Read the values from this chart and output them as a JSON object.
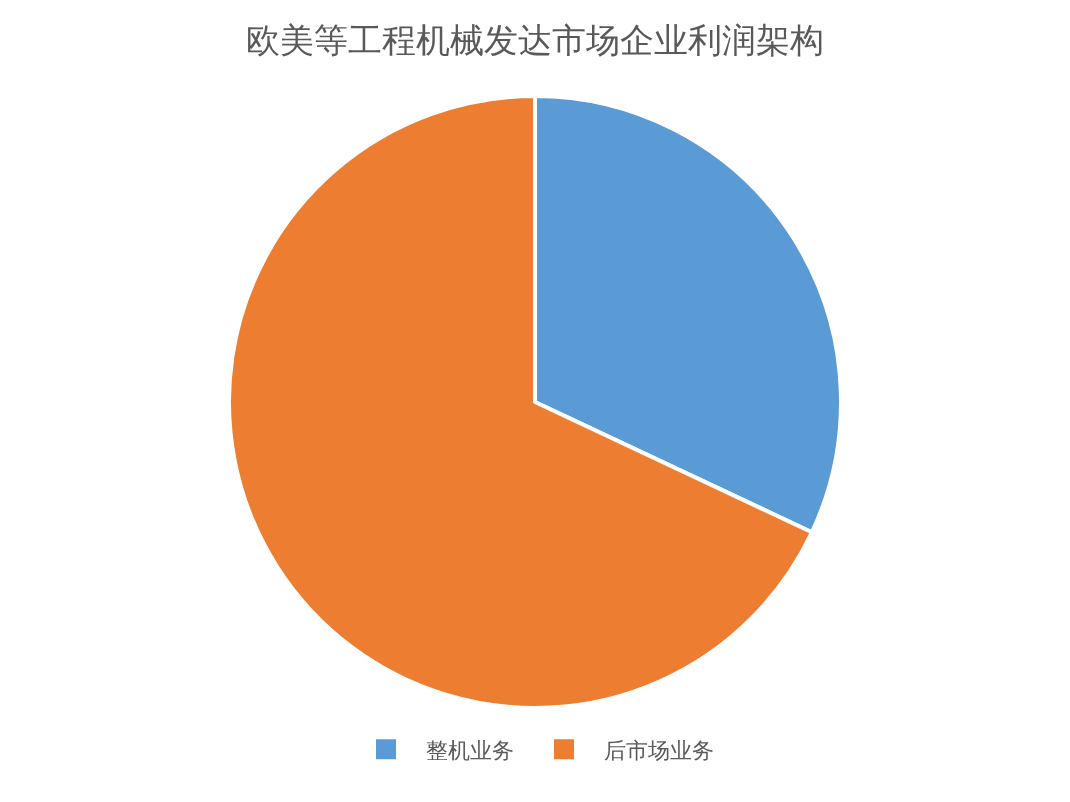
{
  "chart_data": {
    "type": "pie",
    "title": "欧美等工程机械发达市场企业利润架构",
    "categories": [
      "整机业务",
      "后市场业务"
    ],
    "values": [
      32,
      68
    ],
    "colors": [
      "#5b9bd5",
      "#ed7d31"
    ],
    "legend": "bottom"
  }
}
